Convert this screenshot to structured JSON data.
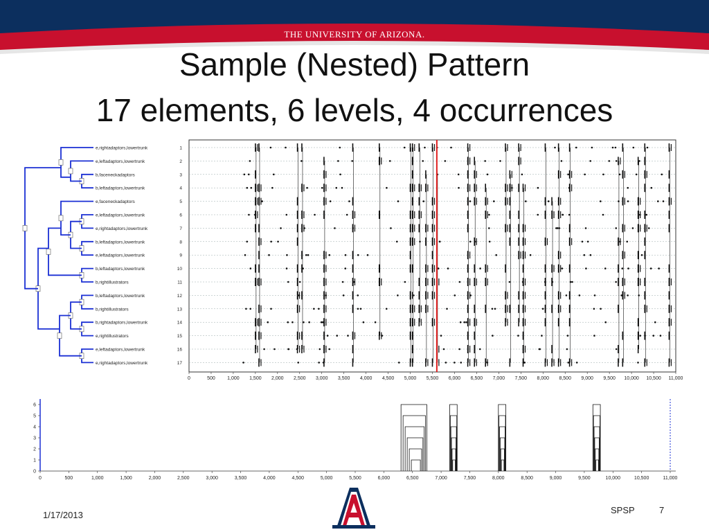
{
  "header": {
    "university": "THE UNIVERSITY OF ARIZONA."
  },
  "slide": {
    "title_line1": "Sample (Nested) Pattern",
    "title_line2": "17 elements, 6 levels, 4 occurrences"
  },
  "colors": {
    "header_blue": "#0c2f5e",
    "header_red": "#c8102e",
    "marker_red": "#e02020",
    "tree_blue": "#1a2fd4"
  },
  "upper_chart": {
    "rows": [
      {
        "num": "1",
        "label": "e,rightadaptors,lowertrunk"
      },
      {
        "num": "2",
        "label": "e,leftadaptors,lowertrunk"
      },
      {
        "num": "3",
        "label": "b,faceneckadaptors"
      },
      {
        "num": "4",
        "label": "b,leftadaptors,lowertrunk"
      },
      {
        "num": "5",
        "label": "e,faceneckadaptors"
      },
      {
        "num": "6",
        "label": "e,leftadaptors,lowertrunk"
      },
      {
        "num": "7",
        "label": "e,rightadaptors,lowertrunk"
      },
      {
        "num": "8",
        "label": "b,leftadaptors,lowertrunk"
      },
      {
        "num": "9",
        "label": "e,leftadaptors,lowertrunk"
      },
      {
        "num": "10",
        "label": "b,leftadaptors,lowertrunk"
      },
      {
        "num": "11",
        "label": "b,rightillustrators"
      },
      {
        "num": "12",
        "label": "b,leftadaptors,lowertrunk"
      },
      {
        "num": "13",
        "label": "b,rightillustrators"
      },
      {
        "num": "14",
        "label": "b,rightadaptors,lowertrunk"
      },
      {
        "num": "15",
        "label": "e,rightillustrators"
      },
      {
        "num": "16",
        "label": "e,leftadaptors,lowertrunk"
      },
      {
        "num": "17",
        "label": "e,rightadaptors,lowertrunk"
      }
    ],
    "x_ticks": [
      "0",
      "500",
      "1,000",
      "1,500",
      "2,000",
      "2,500",
      "3,000",
      "3,500",
      "4,000",
      "4,500",
      "5,000",
      "5,500",
      "6,000",
      "6,500",
      "7,000",
      "7,500",
      "8,000",
      "8,500",
      "9,000",
      "9,500",
      "10,000",
      "10,500",
      "11,000"
    ],
    "x_range": [
      0,
      11000
    ],
    "marker_x": 5600
  },
  "lower_chart": {
    "y_ticks": [
      "0",
      "1",
      "2",
      "3",
      "4",
      "5",
      "6"
    ],
    "x_ticks": [
      "0",
      "500",
      "1,000",
      "1,500",
      "2,000",
      "2,500",
      "3,000",
      "3,500",
      "4,000",
      "4,500",
      "5,000",
      "5,500",
      "6,000",
      "6,500",
      "7,000",
      "7,500",
      "8,000",
      "8,500",
      "9,000",
      "9,500",
      "10,000",
      "10,500",
      "11,000"
    ],
    "x_range": [
      0,
      11000
    ],
    "y_range": [
      0,
      6
    ],
    "occurrences": [
      6300,
      7150,
      8000,
      9650
    ]
  },
  "footer": {
    "date": "1/17/2013",
    "name": "SPSP",
    "page": "7"
  }
}
